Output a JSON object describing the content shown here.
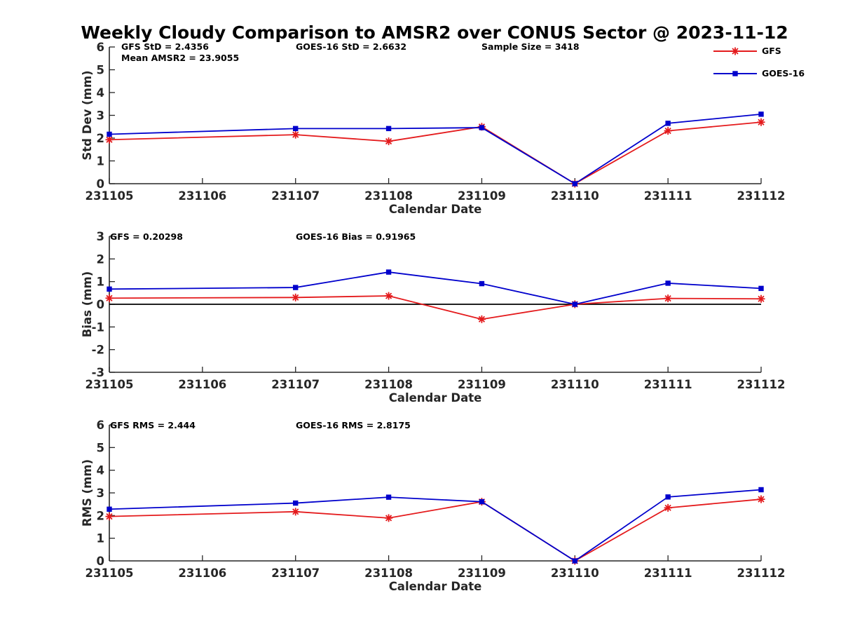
{
  "title": "Weekly Cloudy Comparison to AMSR2 over CONUS Sector @ 2023-11-12",
  "legend": {
    "placement": "top-right",
    "entries": [
      {
        "name": "GFS",
        "color": "#e41a1c",
        "marker": "asterisk"
      },
      {
        "name": "GOES-16",
        "color": "#0000cc",
        "marker": "square"
      }
    ]
  },
  "chart_data": [
    {
      "type": "line",
      "xlabel": "Calendar Date",
      "ylabel": "Std Dev (mm)",
      "xlim": [
        231105,
        231112
      ],
      "ylim": [
        0,
        6
      ],
      "xticks": [
        "231105",
        "231106",
        "231107",
        "231108",
        "231109",
        "231110",
        "231111",
        "231112"
      ],
      "yticks": [
        "0",
        "1",
        "2",
        "3",
        "4",
        "5",
        "6"
      ],
      "x": [
        231105,
        231107,
        231108,
        231109,
        231110,
        231111,
        231112
      ],
      "series": [
        {
          "name": "GFS",
          "values": [
            1.93,
            2.15,
            1.86,
            2.5,
            0.0,
            2.32,
            2.7
          ]
        },
        {
          "name": "GOES-16",
          "values": [
            2.17,
            2.42,
            2.42,
            2.46,
            0.0,
            2.65,
            3.05
          ]
        }
      ],
      "zero_line": false,
      "annotations": [
        "GFS StD = 2.4356",
        "Mean AMSR2 = 23.9055",
        "GOES-16 StD = 2.6632",
        "Sample Size = 3418"
      ]
    },
    {
      "type": "line",
      "xlabel": "Calendar Date",
      "ylabel": "Bias (mm)",
      "xlim": [
        231105,
        231112
      ],
      "ylim": [
        -3,
        3
      ],
      "xticks": [
        "231105",
        "231106",
        "231107",
        "231108",
        "231109",
        "231110",
        "231111",
        "231112"
      ],
      "yticks": [
        "-3",
        "-2",
        "-1",
        "0",
        "1",
        "2",
        "3"
      ],
      "x": [
        231105,
        231107,
        231108,
        231109,
        231110,
        231111,
        231112
      ],
      "series": [
        {
          "name": "GFS",
          "values": [
            0.27,
            0.3,
            0.37,
            -0.66,
            0.0,
            0.26,
            0.24
          ]
        },
        {
          "name": "GOES-16",
          "values": [
            0.67,
            0.74,
            1.42,
            0.91,
            0.0,
            0.93,
            0.7
          ]
        }
      ],
      "zero_line": true,
      "annotations": [
        "GFS = 0.20298",
        "GOES-16 Bias  = 0.91965"
      ]
    },
    {
      "type": "line",
      "xlabel": "Calendar Date",
      "ylabel": "RMS (mm)",
      "xlim": [
        231105,
        231112
      ],
      "ylim": [
        0,
        6
      ],
      "xticks": [
        "231105",
        "231106",
        "231107",
        "231108",
        "231109",
        "231110",
        "231111",
        "231112"
      ],
      "yticks": [
        "0",
        "1",
        "2",
        "3",
        "4",
        "5",
        "6"
      ],
      "x": [
        231105,
        231107,
        231108,
        231109,
        231110,
        231111,
        231112
      ],
      "series": [
        {
          "name": "GFS",
          "values": [
            1.96,
            2.17,
            1.89,
            2.61,
            0.0,
            2.34,
            2.72
          ]
        },
        {
          "name": "GOES-16",
          "values": [
            2.28,
            2.55,
            2.81,
            2.61,
            0.0,
            2.82,
            3.14
          ]
        }
      ],
      "zero_line": false,
      "annotations": [
        "GFS RMS = 2.444",
        "GOES-16 RMS = 2.8175"
      ]
    }
  ]
}
